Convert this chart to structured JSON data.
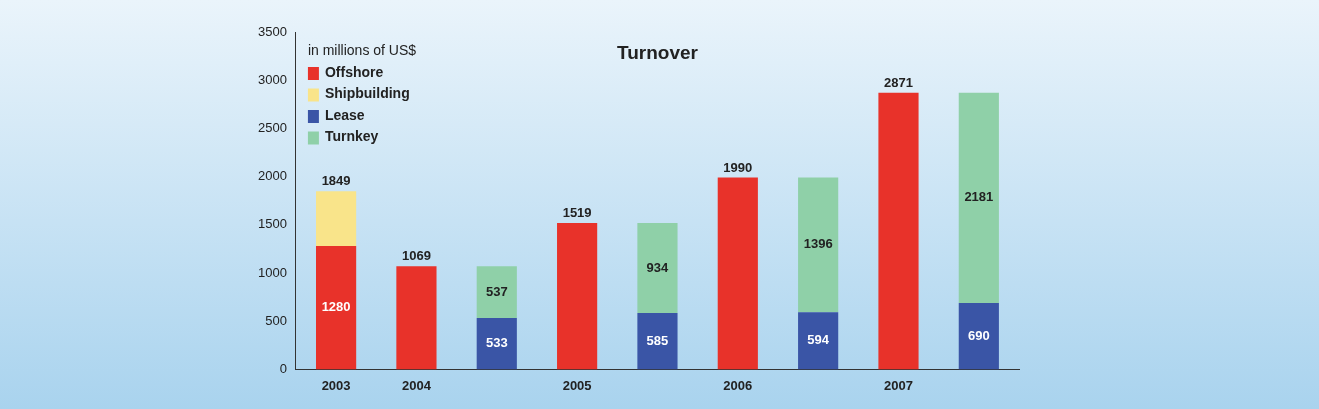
{
  "chart_data": {
    "type": "bar",
    "title": "Turnover",
    "legend_title": "in millions of US$",
    "categories": [
      "2003",
      "2004",
      null,
      "2005",
      null,
      "2006",
      null,
      "2007",
      null
    ],
    "stacked": true,
    "ylim": [
      0,
      3500
    ],
    "yticks": [
      0,
      500,
      1000,
      1500,
      2000,
      2500,
      3000,
      3500
    ],
    "grid": false,
    "legend": "top left",
    "series": [
      {
        "name": "Offshore",
        "color": "#e8322a",
        "values": [
          1280,
          1069,
          null,
          1519,
          null,
          1990,
          null,
          2871,
          null
        ],
        "value_labels": [
          "1280",
          null,
          null,
          null,
          null,
          null,
          null,
          null,
          null
        ]
      },
      {
        "name": "Shipbuilding",
        "color": "#f9e48a",
        "values": [
          569,
          null,
          null,
          null,
          null,
          null,
          null,
          null,
          null
        ]
      },
      {
        "name": "Lease",
        "color": "#3a55a6",
        "values": [
          null,
          null,
          533,
          null,
          585,
          null,
          594,
          null,
          690
        ],
        "value_labels": [
          null,
          null,
          "533",
          null,
          "585",
          null,
          "594",
          null,
          "690"
        ]
      },
      {
        "name": "Turnkey",
        "color": "#8fd0a8",
        "values": [
          null,
          null,
          537,
          null,
          934,
          null,
          1396,
          null,
          2181
        ],
        "value_labels": [
          null,
          null,
          "537",
          null,
          "934",
          null,
          "1396",
          null,
          "2181"
        ]
      }
    ],
    "totals": [
      "1849",
      "1069",
      null,
      "1519",
      null,
      "1990",
      null,
      "2871",
      null
    ]
  }
}
